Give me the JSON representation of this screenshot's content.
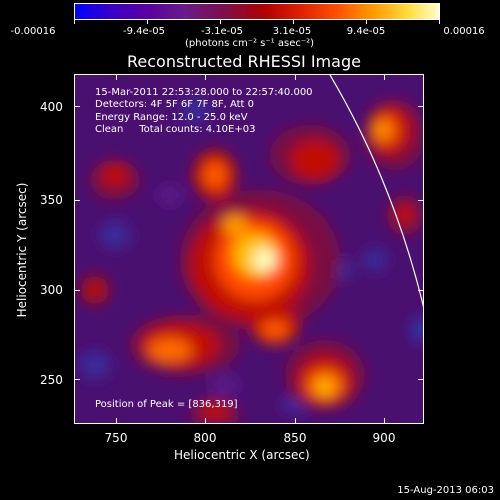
{
  "colorbar": {
    "labels": [
      "-0.00016",
      "-9.4e-05",
      "-3.1e-05",
      "3.1e-05",
      "9.4e-05",
      "0.00016"
    ],
    "units": "(photons cm⁻² s⁻¹ asec⁻²)"
  },
  "title": "Reconstructed RHESSI Image",
  "info": {
    "time_range": "15-Mar-2011 22:53:28.000 to 22:57:40.000",
    "detectors": "Detectors: 4F 5F 6F 7F 8F, Att 0",
    "energy": "Energy Range: 12.0 - 25.0 keV",
    "clean": "Clean     Total counts: 4.10E+03",
    "peak": "Position of Peak = [836,319]"
  },
  "axes": {
    "x_title": "Heliocentric X (arcsec)",
    "y_title": "Heliocentric Y (arcsec)",
    "x_ticks": [
      "750",
      "800",
      "850",
      "900"
    ],
    "y_ticks": [
      "250",
      "300",
      "350",
      "400"
    ]
  },
  "timestamp": "15-Aug-2013 06:03"
}
